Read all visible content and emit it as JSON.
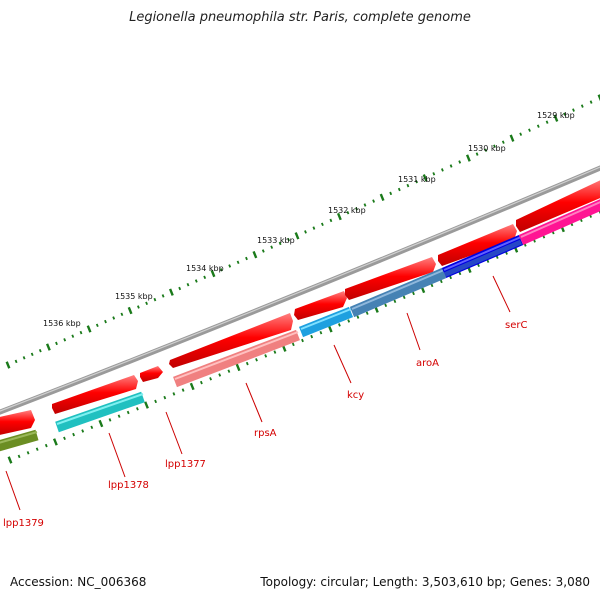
{
  "title": "Legionella pneumophila str. Paris, complete genome",
  "footer": {
    "accession": "Accession: NC_006368",
    "summary": "Topology: circular; Length: 3,503,610 bp; Genes: 3,080"
  },
  "ticks": [
    {
      "label": "1529 kbp"
    },
    {
      "label": "1530 kbp"
    },
    {
      "label": "1531 kbp"
    },
    {
      "label": "1532 kbp"
    },
    {
      "label": "1533 kbp"
    },
    {
      "label": "1534 kbp"
    },
    {
      "label": "1535 kbp"
    },
    {
      "label": "1536 kbp"
    }
  ],
  "genes": [
    {
      "name": "lpp1379",
      "color": "#cc0000"
    },
    {
      "name": "lpp1378",
      "color": "#cc0000"
    },
    {
      "name": "lpp1377",
      "color": "#cc0000"
    },
    {
      "name": "rpsA",
      "color": "#cc0000"
    },
    {
      "name": "kcy",
      "color": "#cc0000"
    },
    {
      "name": "aroA",
      "color": "#cc0000"
    },
    {
      "name": "serC",
      "color": "#cc0000"
    }
  ],
  "colors": {
    "backbone": "#808080",
    "cds_forward": "#ff0000",
    "tick_marks": "#1a7a1a",
    "label_text": "#d40000"
  }
}
